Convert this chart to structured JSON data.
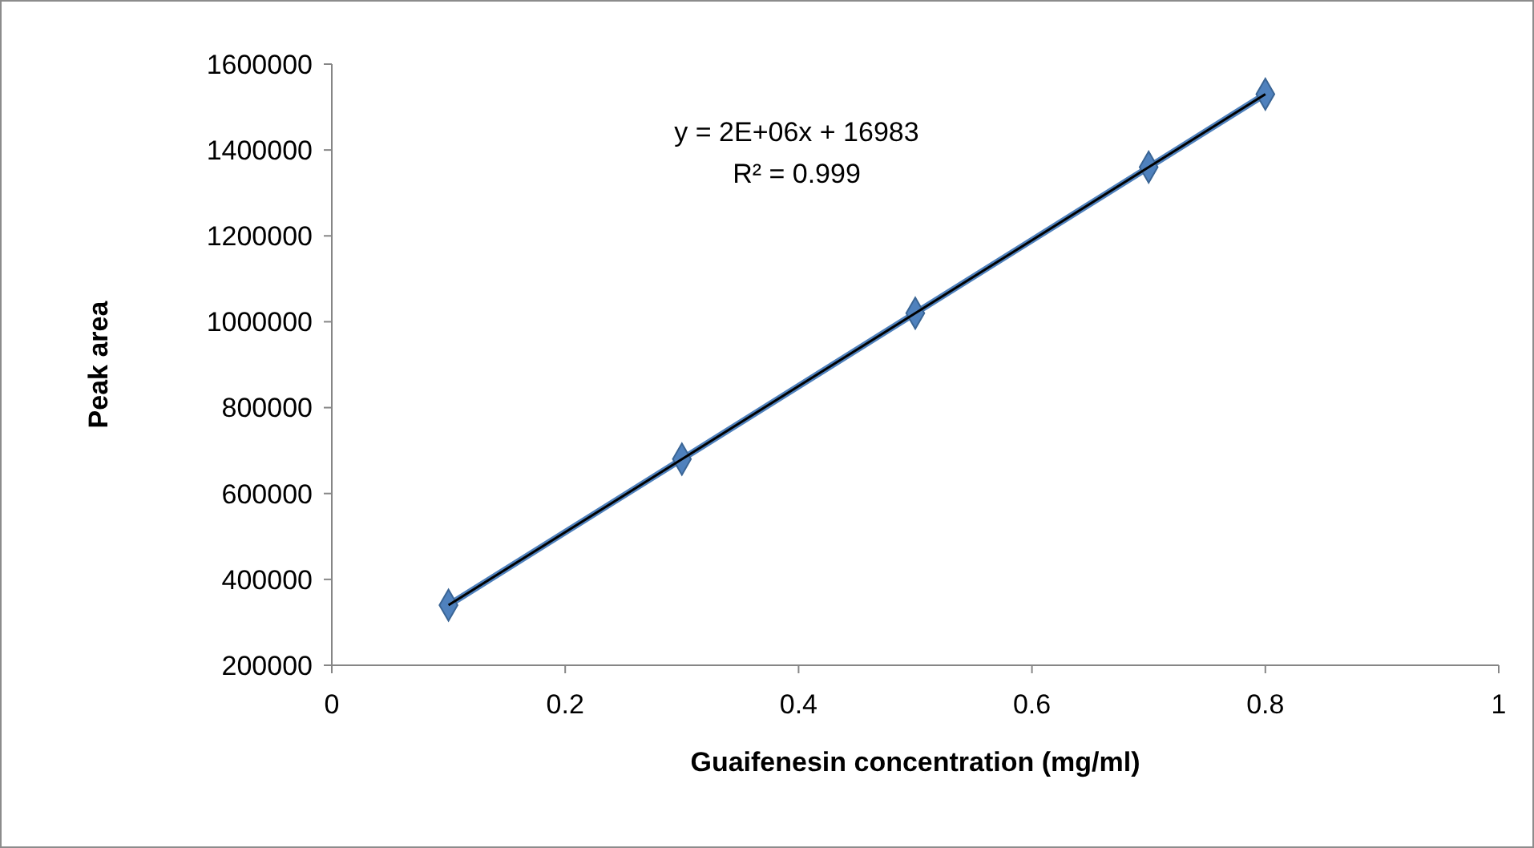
{
  "chart_data": {
    "type": "line",
    "xlabel": "Guaifenesin concentration (mg/ml)",
    "ylabel": "Peak area",
    "xlim": [
      0,
      1
    ],
    "xticks": [
      0,
      0.2,
      0.4,
      0.6,
      0.8,
      1
    ],
    "ylim": [
      200000,
      1600000
    ],
    "yticks": [
      200000,
      400000,
      600000,
      800000,
      1000000,
      1200000,
      1400000,
      1600000
    ],
    "grid": false,
    "marker": "diamond",
    "series": [
      {
        "color": "#4f81bd",
        "x": [
          0.1,
          0.3,
          0.5,
          0.7,
          0.8
        ],
        "values": [
          340000,
          680000,
          1020000,
          1360000,
          1530000
        ]
      },
      {
        "type": "line",
        "color": "#000000",
        "marker": "none",
        "x": [
          0.1,
          0.8
        ],
        "values": [
          340000,
          1530000
        ]
      }
    ],
    "annotations": [
      "y = 2E+06x + 16983",
      "R² = 0.999"
    ]
  }
}
